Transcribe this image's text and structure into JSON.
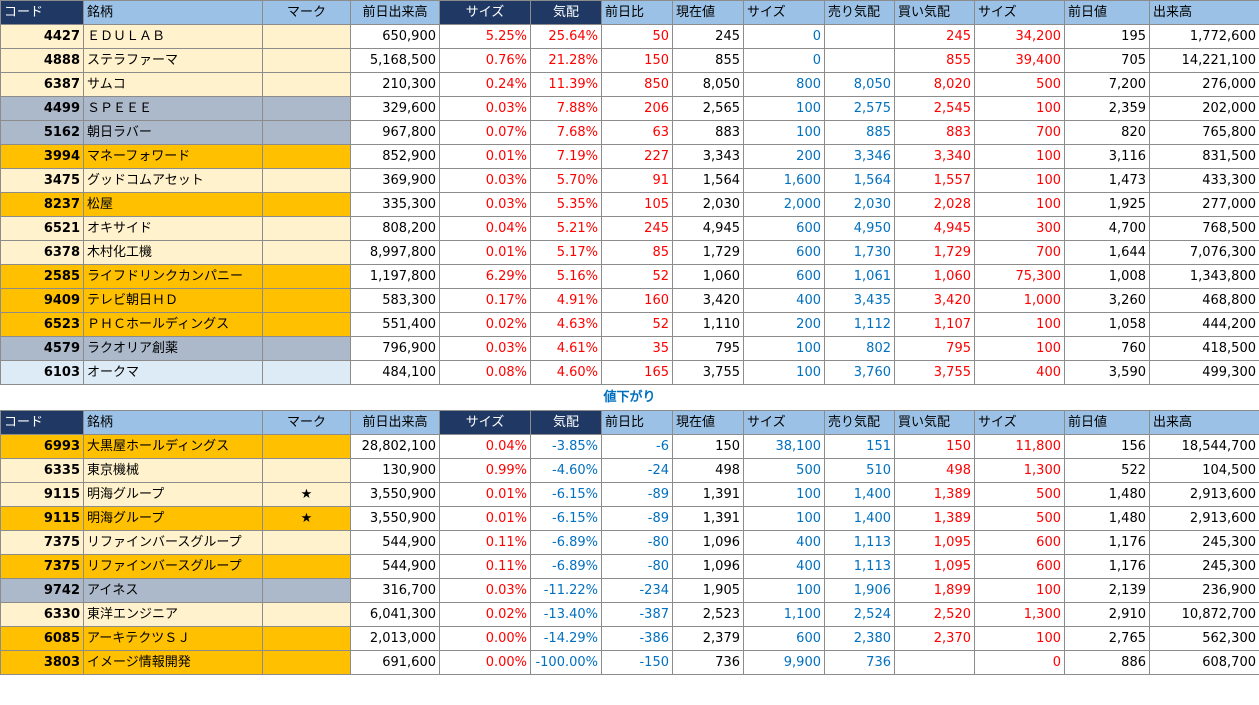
{
  "headers": {
    "code": "コード",
    "name": "銘柄",
    "mark": "マーク",
    "prev_volume": "前日出来高",
    "size1": "サイズ",
    "kehai": "気配",
    "change": "前日比",
    "current": "現在値",
    "size2": "サイズ",
    "ask": "売り気配",
    "bid": "買い気配",
    "size3": "サイズ",
    "prev_close": "前日値",
    "volume": "出来高"
  },
  "colors": {
    "header_blue": "#9bc2e6",
    "header_dark": "#1f3864",
    "up": "#ff0000",
    "down": "#0070c0",
    "row_light": "#fff2cc",
    "row_orange": "#ffc000",
    "row_gray": "#acb9ca",
    "row_pale": "#ddebf7"
  },
  "separator_label": "値下がり",
  "gainers": [
    {
      "code": "4427",
      "name": "ＥＤＵＬＡＢ",
      "mark": "",
      "prev_volume": "650,900",
      "size1": "5.25%",
      "kehai": "25.64%",
      "change": "50",
      "current": "245",
      "size2": "0",
      "ask": "",
      "bid": "245",
      "size3": "34,200",
      "prev_close": "195",
      "volume": "1,772,600",
      "bg": "light"
    },
    {
      "code": "4888",
      "name": "ステラファーマ",
      "mark": "",
      "prev_volume": "5,168,500",
      "size1": "0.76%",
      "kehai": "21.28%",
      "change": "150",
      "current": "855",
      "size2": "0",
      "ask": "",
      "bid": "855",
      "size3": "39,400",
      "prev_close": "705",
      "volume": "14,221,100",
      "bg": "light"
    },
    {
      "code": "6387",
      "name": "サムコ",
      "mark": "",
      "prev_volume": "210,300",
      "size1": "0.24%",
      "kehai": "11.39%",
      "change": "850",
      "current": "8,050",
      "size2": "800",
      "ask": "8,050",
      "bid": "8,020",
      "size3": "500",
      "prev_close": "7,200",
      "volume": "276,000",
      "bg": "light"
    },
    {
      "code": "4499",
      "name": "ＳＰＥＥＥ",
      "mark": "",
      "prev_volume": "329,600",
      "size1": "0.03%",
      "kehai": "7.88%",
      "change": "206",
      "current": "2,565",
      "size2": "100",
      "ask": "2,575",
      "bid": "2,545",
      "size3": "100",
      "prev_close": "2,359",
      "volume": "202,000",
      "bg": "gray"
    },
    {
      "code": "5162",
      "name": "朝日ラバー",
      "mark": "",
      "prev_volume": "967,800",
      "size1": "0.07%",
      "kehai": "7.68%",
      "change": "63",
      "current": "883",
      "size2": "100",
      "ask": "885",
      "bid": "883",
      "size3": "700",
      "prev_close": "820",
      "volume": "765,800",
      "bg": "gray"
    },
    {
      "code": "3994",
      "name": "マネーフォワード",
      "mark": "",
      "prev_volume": "852,900",
      "size1": "0.01%",
      "kehai": "7.19%",
      "change": "227",
      "current": "3,343",
      "size2": "200",
      "ask": "3,346",
      "bid": "3,340",
      "size3": "100",
      "prev_close": "3,116",
      "volume": "831,500",
      "bg": "orange"
    },
    {
      "code": "3475",
      "name": "グッドコムアセット",
      "mark": "",
      "prev_volume": "369,900",
      "size1": "0.03%",
      "kehai": "5.70%",
      "change": "91",
      "current": "1,564",
      "size2": "1,600",
      "ask": "1,564",
      "bid": "1,557",
      "size3": "100",
      "prev_close": "1,473",
      "volume": "433,300",
      "bg": "light"
    },
    {
      "code": "8237",
      "name": "松屋",
      "mark": "",
      "prev_volume": "335,300",
      "size1": "0.03%",
      "kehai": "5.35%",
      "change": "105",
      "current": "2,030",
      "size2": "2,000",
      "ask": "2,030",
      "bid": "2,028",
      "size3": "100",
      "prev_close": "1,925",
      "volume": "277,000",
      "bg": "orange"
    },
    {
      "code": "6521",
      "name": "オキサイド",
      "mark": "",
      "prev_volume": "808,200",
      "size1": "0.04%",
      "kehai": "5.21%",
      "change": "245",
      "current": "4,945",
      "size2": "600",
      "ask": "4,950",
      "bid": "4,945",
      "size3": "300",
      "prev_close": "4,700",
      "volume": "768,500",
      "bg": "light"
    },
    {
      "code": "6378",
      "name": "木村化工機",
      "mark": "",
      "prev_volume": "8,997,800",
      "size1": "0.01%",
      "kehai": "5.17%",
      "change": "85",
      "current": "1,729",
      "size2": "600",
      "ask": "1,730",
      "bid": "1,729",
      "size3": "700",
      "prev_close": "1,644",
      "volume": "7,076,300",
      "bg": "light"
    },
    {
      "code": "2585",
      "name": "ライフドリンクカンパニー",
      "mark": "",
      "prev_volume": "1,197,800",
      "size1": "6.29%",
      "kehai": "5.16%",
      "change": "52",
      "current": "1,060",
      "size2": "600",
      "ask": "1,061",
      "bid": "1,060",
      "size3": "75,300",
      "prev_close": "1,008",
      "volume": "1,343,800",
      "bg": "orange"
    },
    {
      "code": "9409",
      "name": "テレビ朝日ＨＤ",
      "mark": "",
      "prev_volume": "583,300",
      "size1": "0.17%",
      "kehai": "4.91%",
      "change": "160",
      "current": "3,420",
      "size2": "400",
      "ask": "3,435",
      "bid": "3,420",
      "size3": "1,000",
      "prev_close": "3,260",
      "volume": "468,800",
      "bg": "orange"
    },
    {
      "code": "6523",
      "name": "ＰＨＣホールディングス",
      "mark": "",
      "prev_volume": "551,400",
      "size1": "0.02%",
      "kehai": "4.63%",
      "change": "52",
      "current": "1,110",
      "size2": "200",
      "ask": "1,112",
      "bid": "1,107",
      "size3": "100",
      "prev_close": "1,058",
      "volume": "444,200",
      "bg": "orange"
    },
    {
      "code": "4579",
      "name": "ラクオリア創薬",
      "mark": "",
      "prev_volume": "796,900",
      "size1": "0.03%",
      "kehai": "4.61%",
      "change": "35",
      "current": "795",
      "size2": "100",
      "ask": "802",
      "bid": "795",
      "size3": "100",
      "prev_close": "760",
      "volume": "418,500",
      "bg": "gray"
    },
    {
      "code": "6103",
      "name": "オークマ",
      "mark": "",
      "prev_volume": "484,100",
      "size1": "0.08%",
      "kehai": "4.60%",
      "change": "165",
      "current": "3,755",
      "size2": "100",
      "ask": "3,760",
      "bid": "3,755",
      "size3": "400",
      "prev_close": "3,590",
      "volume": "499,300",
      "bg": "pale"
    }
  ],
  "losers": [
    {
      "code": "6993",
      "name": "大黒屋ホールディングス",
      "mark": "",
      "prev_volume": "28,802,100",
      "size1": "0.04%",
      "kehai": "-3.85%",
      "change": "-6",
      "current": "150",
      "size2": "38,100",
      "ask": "151",
      "bid": "150",
      "size3": "11,800",
      "prev_close": "156",
      "volume": "18,544,700",
      "bg": "orange"
    },
    {
      "code": "6335",
      "name": "東京機械",
      "mark": "",
      "prev_volume": "130,900",
      "size1": "0.99%",
      "kehai": "-4.60%",
      "change": "-24",
      "current": "498",
      "size2": "500",
      "ask": "510",
      "bid": "498",
      "size3": "1,300",
      "prev_close": "522",
      "volume": "104,500",
      "bg": "light"
    },
    {
      "code": "9115",
      "name": "明海グループ",
      "mark": "★",
      "prev_volume": "3,550,900",
      "size1": "0.01%",
      "kehai": "-6.15%",
      "change": "-89",
      "current": "1,391",
      "size2": "100",
      "ask": "1,400",
      "bid": "1,389",
      "size3": "500",
      "prev_close": "1,480",
      "volume": "2,913,600",
      "bg": "light"
    },
    {
      "code": "9115",
      "name": "明海グループ",
      "mark": "★",
      "prev_volume": "3,550,900",
      "size1": "0.01%",
      "kehai": "-6.15%",
      "change": "-89",
      "current": "1,391",
      "size2": "100",
      "ask": "1,400",
      "bid": "1,389",
      "size3": "500",
      "prev_close": "1,480",
      "volume": "2,913,600",
      "bg": "orange"
    },
    {
      "code": "7375",
      "name": "リファインバースグループ",
      "mark": "",
      "prev_volume": "544,900",
      "size1": "0.11%",
      "kehai": "-6.89%",
      "change": "-80",
      "current": "1,096",
      "size2": "400",
      "ask": "1,113",
      "bid": "1,095",
      "size3": "600",
      "prev_close": "1,176",
      "volume": "245,300",
      "bg": "light"
    },
    {
      "code": "7375",
      "name": "リファインバースグループ",
      "mark": "",
      "prev_volume": "544,900",
      "size1": "0.11%",
      "kehai": "-6.89%",
      "change": "-80",
      "current": "1,096",
      "size2": "400",
      "ask": "1,113",
      "bid": "1,095",
      "size3": "600",
      "prev_close": "1,176",
      "volume": "245,300",
      "bg": "orange"
    },
    {
      "code": "9742",
      "name": "アイネス",
      "mark": "",
      "prev_volume": "316,700",
      "size1": "0.03%",
      "kehai": "-11.22%",
      "change": "-234",
      "current": "1,905",
      "size2": "100",
      "ask": "1,906",
      "bid": "1,899",
      "size3": "100",
      "prev_close": "2,139",
      "volume": "236,900",
      "bg": "gray"
    },
    {
      "code": "6330",
      "name": "東洋エンジニア",
      "mark": "",
      "prev_volume": "6,041,300",
      "size1": "0.02%",
      "kehai": "-13.40%",
      "change": "-387",
      "current": "2,523",
      "size2": "1,100",
      "ask": "2,524",
      "bid": "2,520",
      "size3": "1,300",
      "prev_close": "2,910",
      "volume": "10,872,700",
      "bg": "light"
    },
    {
      "code": "6085",
      "name": "アーキテクツＳＪ",
      "mark": "",
      "prev_volume": "2,013,000",
      "size1": "0.00%",
      "kehai": "-14.29%",
      "change": "-386",
      "current": "2,379",
      "size2": "600",
      "ask": "2,380",
      "bid": "2,370",
      "size3": "100",
      "prev_close": "2,765",
      "volume": "562,300",
      "bg": "orange"
    },
    {
      "code": "3803",
      "name": "イメージ情報開発",
      "mark": "",
      "prev_volume": "691,600",
      "size1": "0.00%",
      "kehai": "-100.00%",
      "change": "-150",
      "current": "736",
      "size2": "9,900",
      "ask": "736",
      "bid": "",
      "size3": "0",
      "prev_close": "886",
      "volume": "608,700",
      "bg": "orange"
    }
  ]
}
